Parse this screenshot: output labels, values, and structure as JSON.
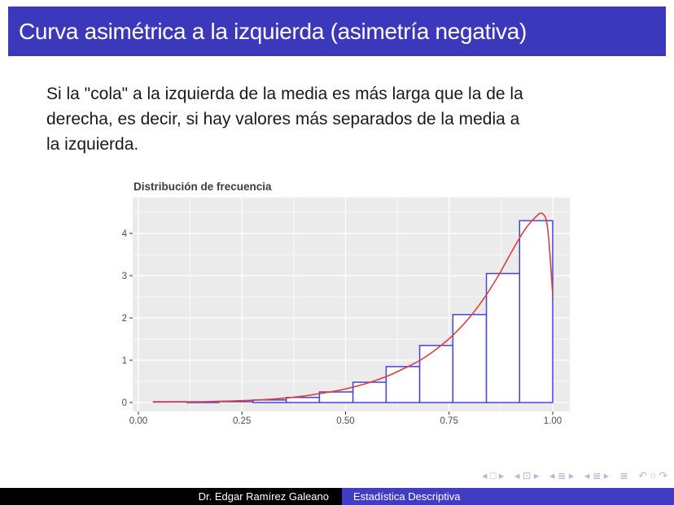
{
  "slide": {
    "title": "Curva asimétrica a la izquierda (asimetría negativa)",
    "body_lines": [
      "Si la \"cola\" a la izquierda de la media es más larga que la de la",
      "derecha, es decir, si hay valores más separados de la media a",
      "la izquierda."
    ]
  },
  "footer": {
    "author": "Dr. Edgar Ramírez Galeano",
    "subject": "Estadística Descriptiva"
  },
  "navigation": {
    "groups": [
      "◂ □ ▸",
      "◂ ⊡ ▸",
      "◂ ≣ ▸",
      "◂ ≣ ▸",
      "≣",
      "↶ ○ ↷"
    ]
  },
  "colors": {
    "header_bg": "#3b38bb",
    "footer_author_bg": "#000000",
    "footer_subject_bg": "#403dc4",
    "nav_icons": "#b5b5d8",
    "body_text": "#1a1a1a"
  },
  "chart_data": {
    "type": "bar",
    "subtype": "histogram_with_density_curve",
    "title": "Distribución de frecuencia",
    "xlabel": "",
    "ylabel": "",
    "xlim": [
      -0.014,
      1.041
    ],
    "ylim": [
      0,
      4.85
    ],
    "grid": true,
    "legend_position": "none",
    "xticks": {
      "values": [
        0,
        0.25,
        0.5,
        0.75,
        1.0
      ],
      "labels": [
        "0.00",
        "0.25",
        "0.50",
        "0.75",
        "1.00"
      ]
    },
    "yticks": {
      "values": [
        0,
        1,
        2,
        3,
        4
      ],
      "labels": [
        "0",
        "1",
        "2",
        "3",
        "4"
      ]
    },
    "minor_x": [
      0.125,
      0.375,
      0.625,
      0.875
    ],
    "minor_y": [
      0.5,
      1.5,
      2.5,
      3.5,
      4.5
    ],
    "bins": [
      {
        "x0": 0.035,
        "x1": 0.115,
        "density": 0.02
      },
      {
        "x0": 0.115,
        "x1": 0.196,
        "density": 0.0
      },
      {
        "x0": 0.196,
        "x1": 0.277,
        "density": 0.02
      },
      {
        "x0": 0.277,
        "x1": 0.357,
        "density": 0.06
      },
      {
        "x0": 0.357,
        "x1": 0.437,
        "density": 0.12
      },
      {
        "x0": 0.437,
        "x1": 0.518,
        "density": 0.25
      },
      {
        "x0": 0.518,
        "x1": 0.598,
        "density": 0.48
      },
      {
        "x0": 0.598,
        "x1": 0.679,
        "density": 0.85
      },
      {
        "x0": 0.679,
        "x1": 0.759,
        "density": 1.35
      },
      {
        "x0": 0.759,
        "x1": 0.84,
        "density": 2.08
      },
      {
        "x0": 0.84,
        "x1": 0.92,
        "density": 3.05
      },
      {
        "x0": 0.92,
        "x1": 1.0,
        "density": 4.3
      }
    ],
    "density_curve": [
      [
        0.035,
        0.01
      ],
      [
        0.1,
        0.015
      ],
      [
        0.16,
        0.02
      ],
      [
        0.22,
        0.035
      ],
      [
        0.28,
        0.055
      ],
      [
        0.33,
        0.085
      ],
      [
        0.38,
        0.13
      ],
      [
        0.43,
        0.2
      ],
      [
        0.48,
        0.28
      ],
      [
        0.52,
        0.37
      ],
      [
        0.56,
        0.48
      ],
      [
        0.6,
        0.62
      ],
      [
        0.64,
        0.8
      ],
      [
        0.68,
        1.0
      ],
      [
        0.72,
        1.27
      ],
      [
        0.76,
        1.6
      ],
      [
        0.8,
        2.02
      ],
      [
        0.84,
        2.55
      ],
      [
        0.87,
        3.02
      ],
      [
        0.9,
        3.55
      ],
      [
        0.93,
        4.05
      ],
      [
        0.955,
        4.35
      ],
      [
        0.975,
        4.47
      ],
      [
        0.988,
        4.1
      ],
      [
        1.0,
        2.55
      ]
    ],
    "colors": {
      "plot_bg": "#ebebeb",
      "grid": "#ffffff",
      "bar_fill": "#ffffff",
      "bar_stroke": "#4444d8",
      "curve": "#e23b3b",
      "tick": "#333333",
      "tick_label": "#4d4d4d",
      "title": "#3d3d3d"
    }
  }
}
